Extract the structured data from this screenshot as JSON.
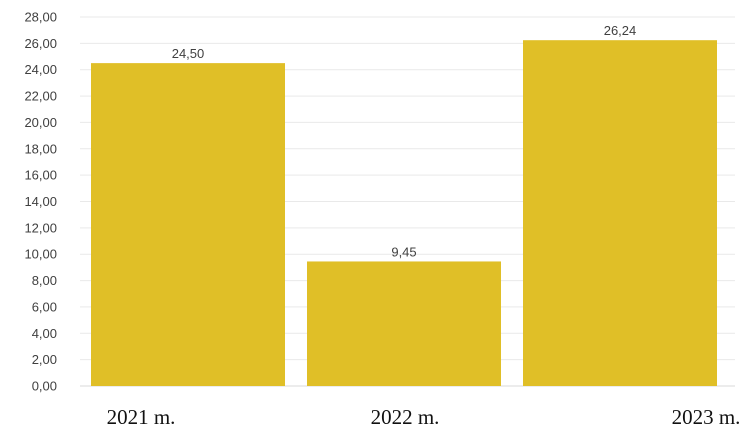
{
  "chart_data": {
    "type": "bar",
    "categories": [
      "2021 m.",
      "2022 m.",
      "2023 m."
    ],
    "values": [
      24.5,
      9.45,
      26.24
    ],
    "value_labels": [
      "24,50",
      "9,45",
      "26,24"
    ],
    "ylim": [
      0,
      28
    ],
    "yticks": [
      0,
      2,
      4,
      6,
      8,
      10,
      12,
      14,
      16,
      18,
      20,
      22,
      24,
      26,
      28
    ],
    "ytick_labels": [
      "0,00",
      "2,00",
      "4,00",
      "6,00",
      "8,00",
      "10,00",
      "12,00",
      "14,00",
      "16,00",
      "18,00",
      "20,00",
      "22,00",
      "24,00",
      "26,00",
      "28,00"
    ],
    "grid": true,
    "legend": false,
    "title": "",
    "xlabel": "",
    "ylabel": "",
    "bar_color": "#e0bf27"
  }
}
